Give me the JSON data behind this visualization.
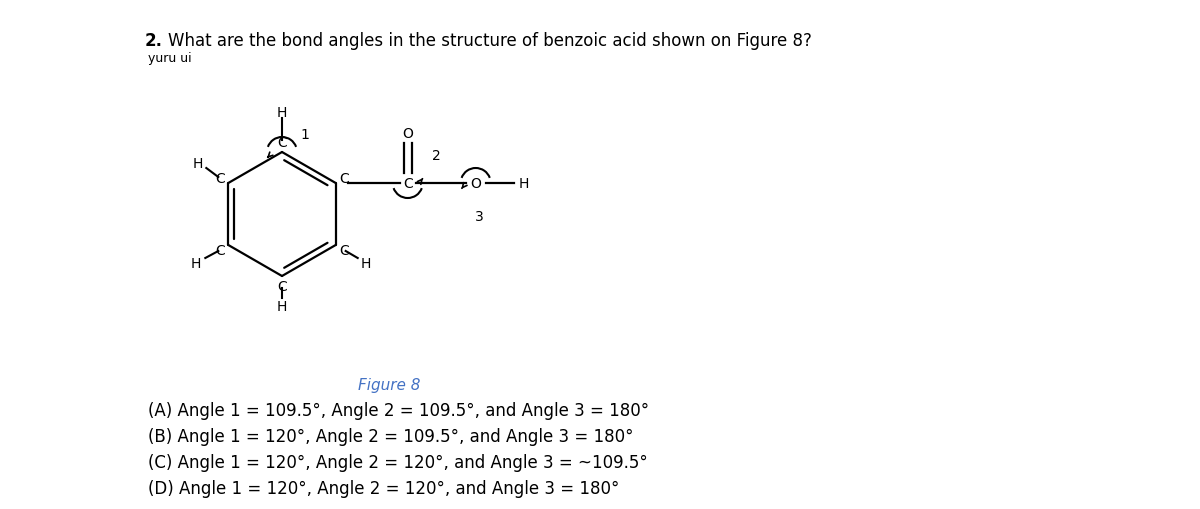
{
  "title_num": "2.",
  "title_text": "  What are the bond angles in the structure of benzoic acid shown on Figure 8?",
  "subtitle": "yuru ui",
  "figure_label": "Figure 8",
  "choices": [
    "(A) Angle 1 = 109.5°, Angle 2 = 109.5°, and Angle 3 = 180°",
    "(B) Angle 1 = 120°, Angle 2 = 109.5°, and Angle 3 = 180°",
    "(C) Angle 1 = 120°, Angle 2 = 120°, and Angle 3 = ~109.5°",
    "(D) Angle 1 = 120°, Angle 2 = 120°, and Angle 3 = 180°"
  ],
  "bg_color": "#ffffff",
  "text_color": "#000000",
  "figure_label_color": "#4472c4",
  "title_fontsize": 12,
  "choices_fontsize": 12
}
